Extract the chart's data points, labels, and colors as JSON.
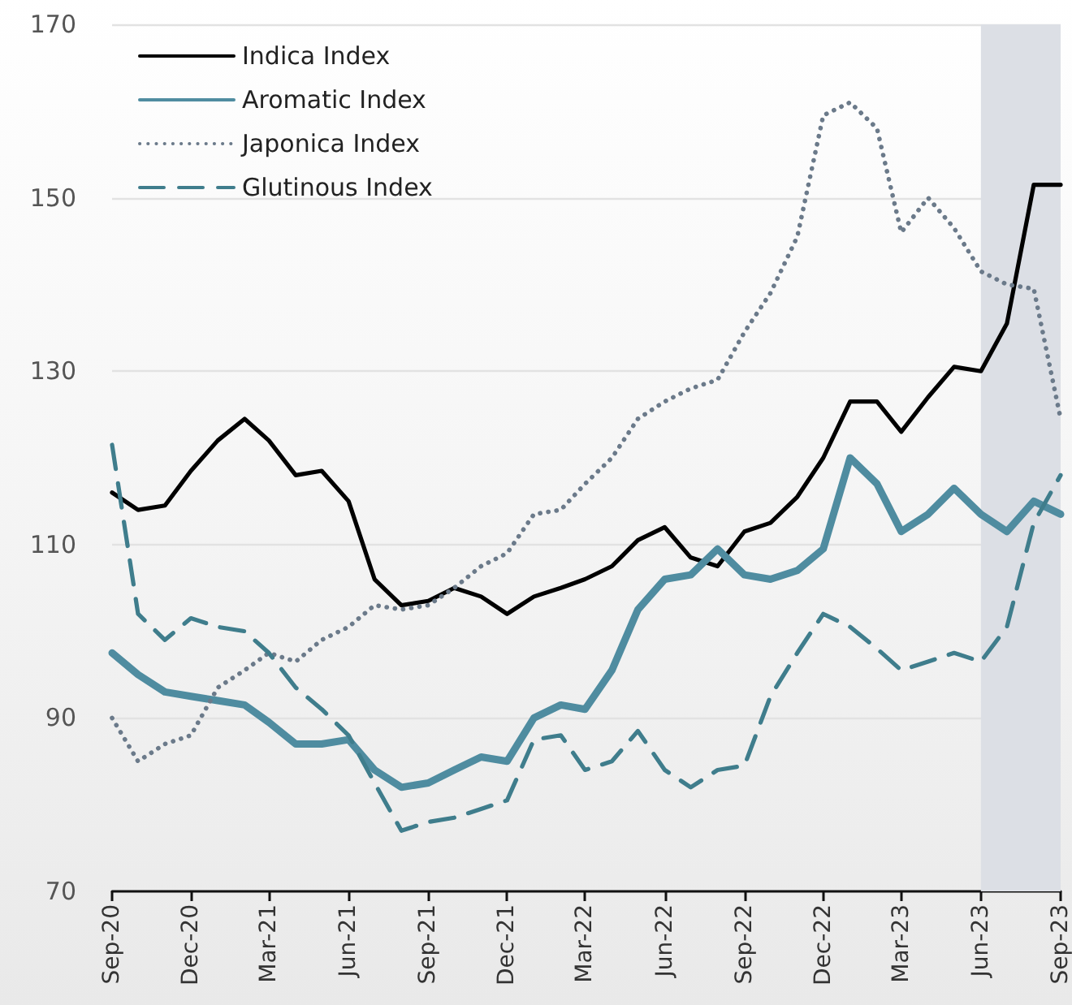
{
  "chart_data": {
    "type": "line",
    "x": [
      "2020-09",
      "2020-10",
      "2020-11",
      "2020-12",
      "2021-01",
      "2021-02",
      "2021-03",
      "2021-04",
      "2021-05",
      "2021-06",
      "2021-07",
      "2021-08",
      "2021-09",
      "2021-10",
      "2021-11",
      "2021-12",
      "2022-01",
      "2022-02",
      "2022-03",
      "2022-04",
      "2022-05",
      "2022-06",
      "2022-07",
      "2022-08",
      "2022-09",
      "2022-10",
      "2022-11",
      "2022-12",
      "2023-01",
      "2023-02",
      "2023-03",
      "2023-04",
      "2023-05",
      "2023-06",
      "2023-07",
      "2023-08",
      "2023-09"
    ],
    "series": [
      {
        "name": "Indica Index",
        "color": "#000000",
        "line_style": "solid",
        "values": [
          116,
          114,
          114.5,
          118.5,
          122,
          124.5,
          122,
          118,
          118.5,
          115,
          106,
          103,
          103.5,
          105,
          104,
          102,
          104,
          105,
          106,
          107.5,
          110.5,
          112,
          108.5,
          107.5,
          111.5,
          112.5,
          115.5,
          120,
          126.5,
          126.5,
          123,
          127,
          130.5,
          130,
          135.5,
          151.5,
          151.5
        ]
      },
      {
        "name": "Aromatic Index",
        "color": "#4f8ca0",
        "line_style": "solid",
        "values": [
          97.5,
          95,
          93,
          92.5,
          92,
          91.5,
          89.5,
          87,
          87,
          87.5,
          84,
          82,
          82.5,
          84,
          85.5,
          85,
          90,
          91.5,
          91,
          95.5,
          102.5,
          106,
          106.5,
          109.5,
          106.5,
          106,
          107,
          109.5,
          120,
          117,
          111.5,
          113.5,
          116.5,
          113.5,
          111.5,
          115,
          113.5
        ]
      },
      {
        "name": "Japonica Index",
        "color": "#6b7a8a",
        "line_style": "dotted",
        "values": [
          90,
          85,
          87,
          88,
          93.5,
          95.5,
          97.5,
          96.5,
          99,
          100.5,
          103,
          102.5,
          103,
          105,
          107.5,
          109,
          113.5,
          114,
          117,
          120,
          124.5,
          126.5,
          128,
          129,
          134.5,
          139,
          145.5,
          159.5,
          161,
          158,
          146,
          150,
          146.5,
          141.5,
          140,
          139.5,
          124.5
        ]
      },
      {
        "name": "Glutinous Index",
        "color": "#3f7d8c",
        "line_style": "dashed",
        "values": [
          121.5,
          102,
          99,
          101.5,
          100.5,
          100,
          97.5,
          93.5,
          91,
          88,
          82.5,
          77,
          78,
          78.5,
          79.5,
          80.5,
          87.5,
          88,
          84,
          85,
          88.5,
          84,
          82,
          84,
          84.5,
          92.5,
          97.5,
          102,
          100.5,
          98,
          95.5,
          96.5,
          97.5,
          96.5,
          100.5,
          112.5,
          118
        ]
      }
    ],
    "xlim": [
      "2020-09",
      "2023-09"
    ],
    "xticks": [
      {
        "value": "2020-09",
        "label": "Sep-20"
      },
      {
        "value": "2020-12",
        "label": "Dec-20"
      },
      {
        "value": "2021-03",
        "label": "Mar-21"
      },
      {
        "value": "2021-06",
        "label": "Jun-21"
      },
      {
        "value": "2021-09",
        "label": "Sep-21"
      },
      {
        "value": "2021-12",
        "label": "Dec-21"
      },
      {
        "value": "2022-03",
        "label": "Mar-22"
      },
      {
        "value": "2022-06",
        "label": "Jun-22"
      },
      {
        "value": "2022-09",
        "label": "Sep-22"
      },
      {
        "value": "2022-12",
        "label": "Dec-22"
      },
      {
        "value": "2023-03",
        "label": "Mar-23"
      },
      {
        "value": "2023-06",
        "label": "Jun-23"
      },
      {
        "value": "2023-09",
        "label": "Sep-23"
      }
    ],
    "ylim": [
      70,
      170
    ],
    "yticks": [
      70,
      90,
      110,
      130,
      150,
      170
    ],
    "bands": [
      {
        "axis": "x",
        "from": "2023-06",
        "to": "2023-09",
        "color": "#dcdfe5"
      }
    ],
    "grid": "y",
    "legend": "top left",
    "marker": "none"
  }
}
